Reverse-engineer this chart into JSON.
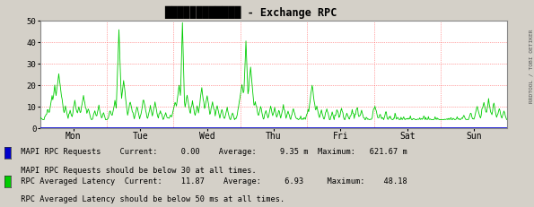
{
  "title": "████████████ - Exchange RPC",
  "bg_color": "#d4d0c8",
  "plot_bg_color": "#ffffff",
  "grid_color_h": "#ff4444",
  "grid_color_v": "#ff4444",
  "y_min": 0,
  "y_max": 50,
  "y_ticks": [
    0,
    10,
    20,
    30,
    40,
    50
  ],
  "x_labels": [
    "Mon",
    "Tue",
    "Wed",
    "Thu",
    "Fri",
    "Sat",
    "Sun"
  ],
  "line1_color": "#0000cc",
  "line2_color": "#00cc00",
  "legend_line1_text": " MAPI RPC Requests    Current:     0.00    Average:     9.35 m  Maximum:   621.67 m",
  "legend_line2_text": " MAPI RPC Requests should be below 30 at all times.",
  "legend_line3_text": " RPC Averaged Latency  Current:    11.87    Average:     6.93     Maximum:    48.18",
  "legend_line4_text": " RPC Averaged Latency should be below 50 ms at all times.",
  "right_label": "RRDTOOL / TOBI OETIKER",
  "arrow_color": "#cc0000"
}
